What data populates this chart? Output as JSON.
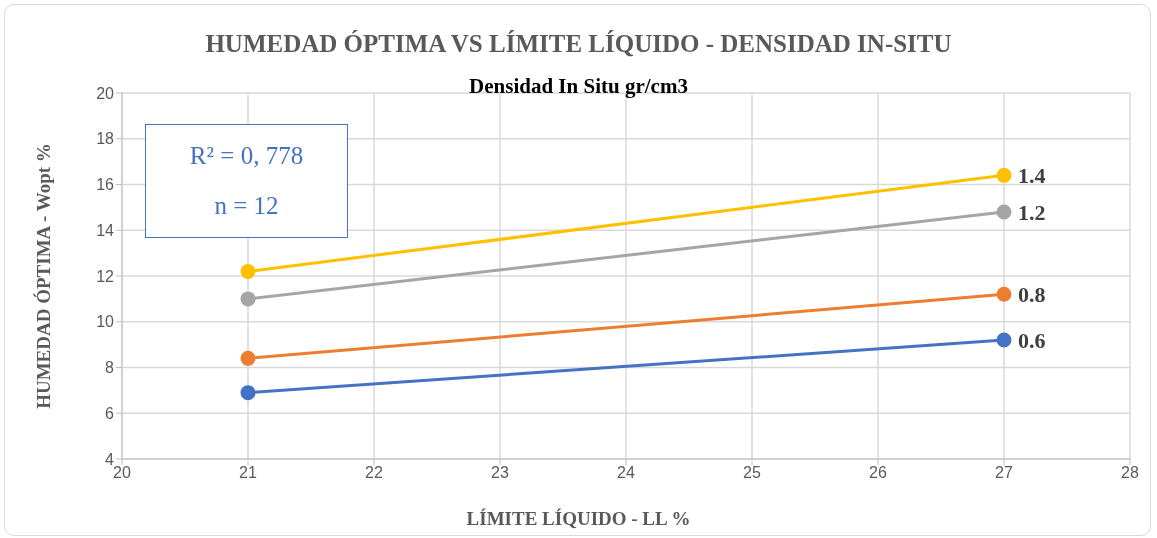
{
  "chart_data": {
    "type": "line",
    "title": "HUMEDAD ÓPTIMA VS LÍMITE LÍQUIDO - DENSIDAD IN-SITU",
    "subtitle": "Densidad In Situ gr/cm3",
    "xlabel": "LÍMITE LÍQUIDO - LL %",
    "ylabel": "HUMEDAD ÓPTIMA - Wopt %",
    "x": [
      21,
      27
    ],
    "series": [
      {
        "name": "0.6",
        "color": "#4472c4",
        "values": [
          6.9,
          9.2
        ]
      },
      {
        "name": "0.8",
        "color": "#ed7d31",
        "values": [
          8.4,
          11.2
        ]
      },
      {
        "name": "1.2",
        "color": "#a5a5a5",
        "values": [
          11.0,
          14.8
        ]
      },
      {
        "name": "1.4",
        "color": "#ffc000",
        "values": [
          12.2,
          16.4
        ]
      }
    ],
    "xlim": [
      20,
      28
    ],
    "xticks": [
      20,
      21,
      22,
      23,
      24,
      25,
      26,
      27,
      28
    ],
    "ylim": [
      4,
      20
    ],
    "yticks": [
      4,
      6,
      8,
      10,
      12,
      14,
      16,
      18,
      20
    ],
    "grid": true,
    "legend": false,
    "marker": "circle",
    "line_style": "solid",
    "annotations": [
      "R² = 0, 778",
      "n = 12"
    ]
  }
}
